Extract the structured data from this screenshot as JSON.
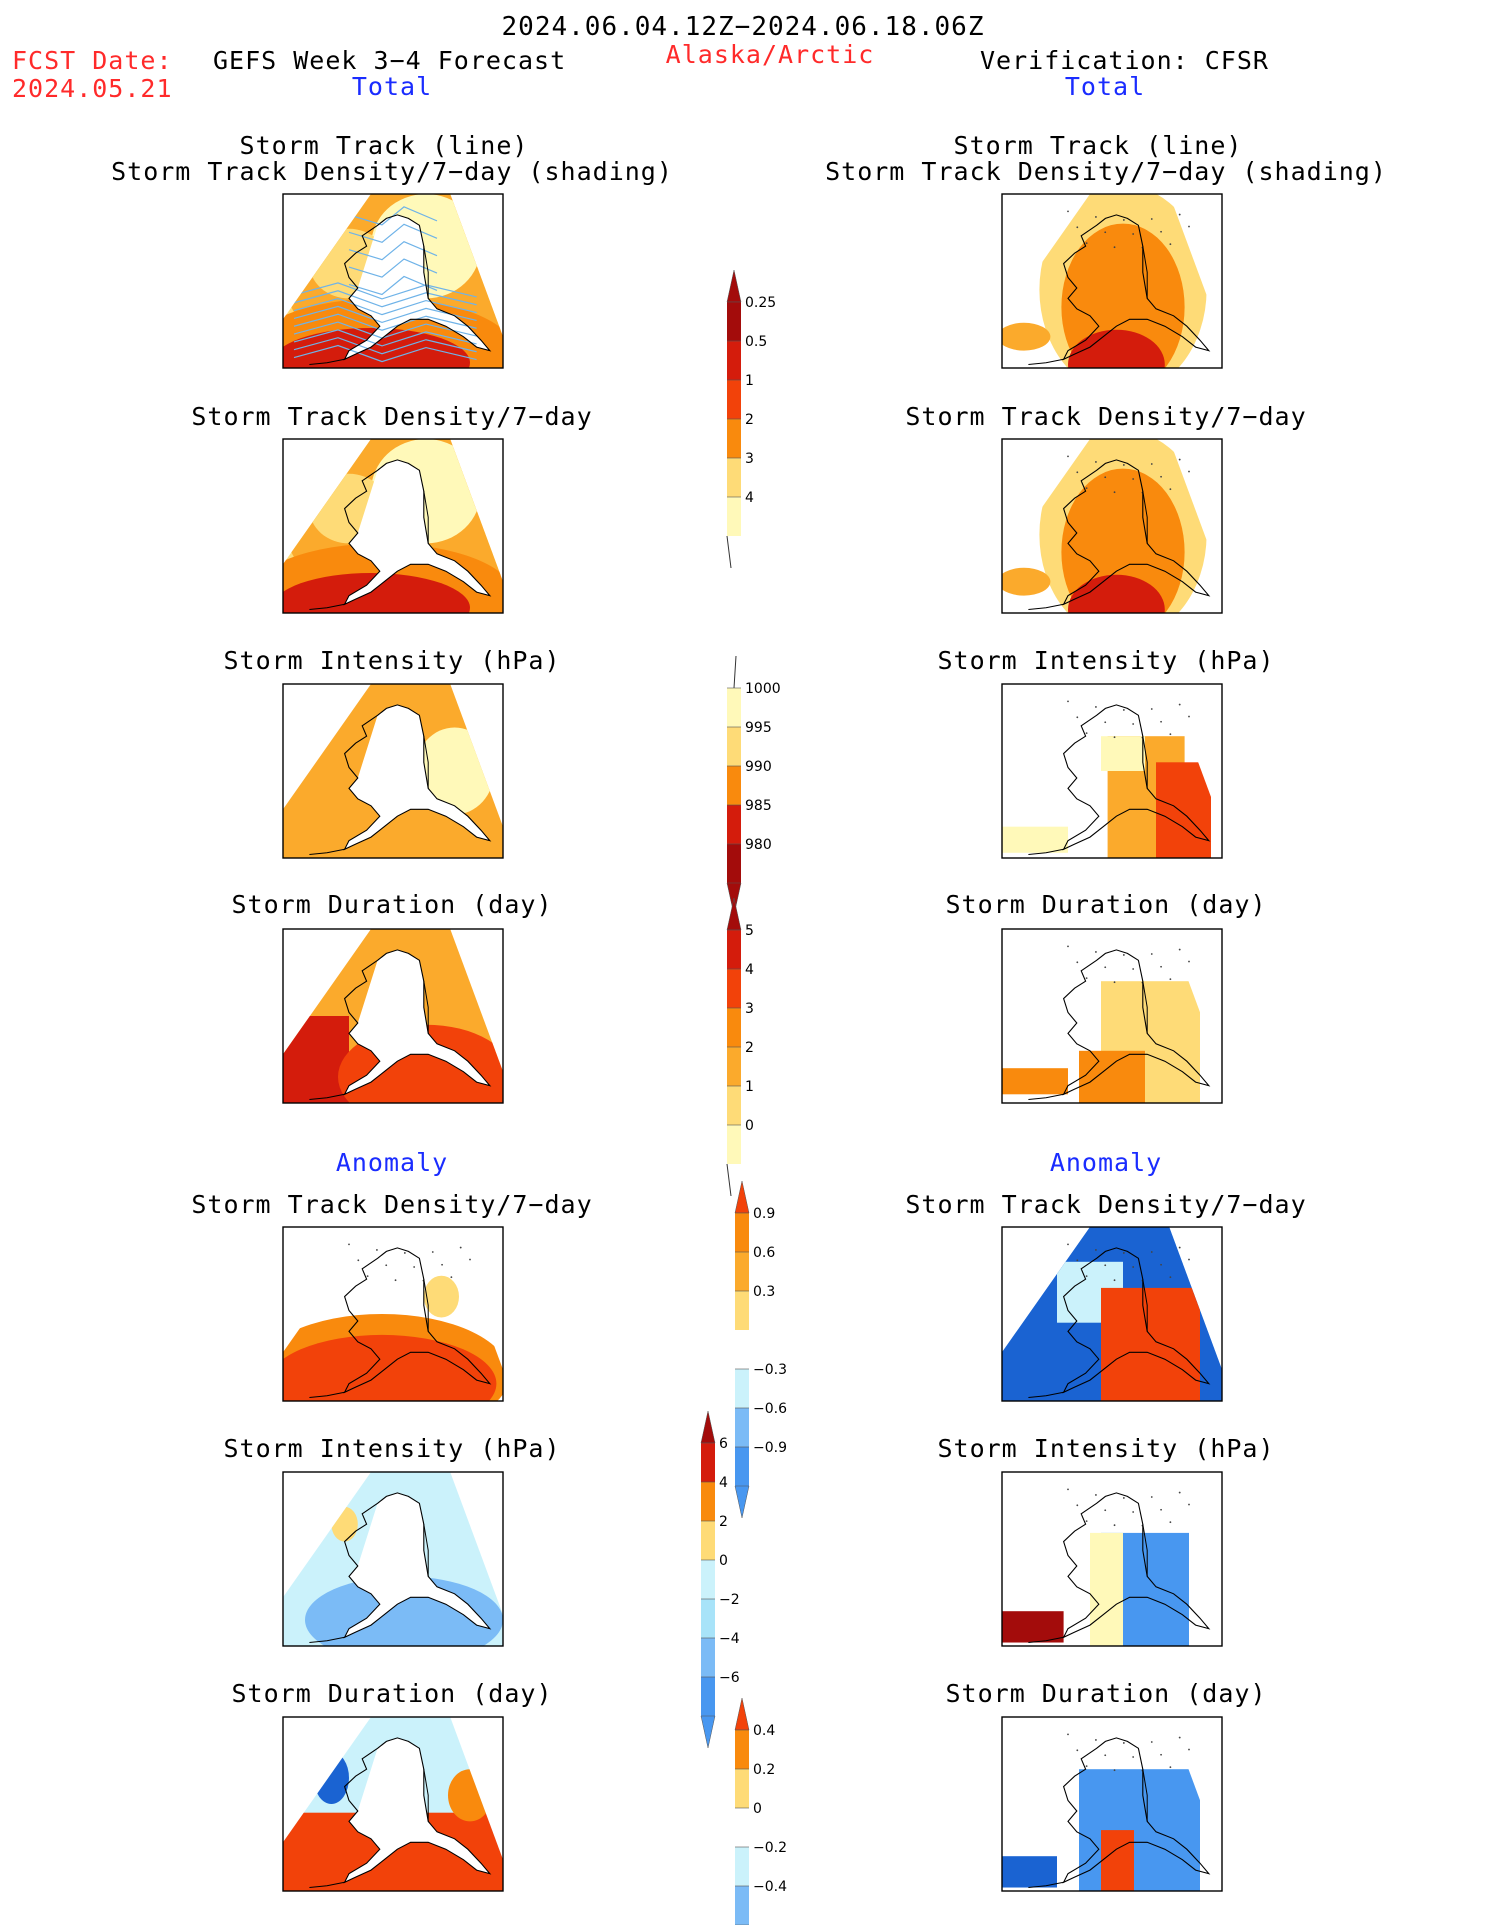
{
  "header": {
    "period": "2024.06.04.12Z−2024.06.18.06Z",
    "fcst_label": "FCST Date:",
    "fcst_date": "2024.05.21",
    "forecast_title": "GEFS Week 3−4 Forecast",
    "region": "Alaska/Arctic",
    "verification": "Verification: CFSR",
    "total_left": "Total",
    "total_right": "Total",
    "anomaly_left": "Anomaly",
    "anomaly_right": "Anomaly"
  },
  "panel_titles": {
    "track_line": "Storm Track (line)",
    "track_shading": "Storm Track Density/7−day (shading)",
    "density": "Storm Track Density/7−day",
    "intensity": "Storm Intensity (hPa)",
    "duration": "Storm Duration (day)"
  },
  "colors": {
    "warm": [
      "#fff9b9",
      "#fedb77",
      "#fbaa2c",
      "#f98a0d",
      "#f2420a",
      "#d41c0c",
      "#a30c0b"
    ],
    "cool": [
      "#cbf2fb",
      "#a8e3f9",
      "#7bbbf6",
      "#4897f0",
      "#1a63d2"
    ],
    "track_line": "#6fb3e8"
  },
  "chart_data": [
    {
      "type": "heatmap",
      "title": "Storm Track Density/7−day",
      "source": "GEFS",
      "colorbar": [
        "0.25",
        "0.5",
        "1",
        "2",
        "3",
        "4"
      ]
    },
    {
      "type": "heatmap",
      "title": "Storm Intensity (hPa)",
      "source": "GEFS",
      "colorbar": [
        "1000",
        "995",
        "990",
        "985",
        "980"
      ]
    },
    {
      "type": "heatmap",
      "title": "Storm Duration (day)",
      "source": "GEFS",
      "colorbar": [
        "5",
        "4",
        "3",
        "2",
        "1",
        "0"
      ]
    },
    {
      "type": "heatmap",
      "title": "Storm Track Density/7−day Anomaly",
      "colorbar": [
        "0.9",
        "0.6",
        "0.3",
        "−0.3",
        "−0.6",
        "−0.9"
      ]
    },
    {
      "type": "heatmap",
      "title": "Storm Intensity (hPa) Anomaly",
      "colorbar": [
        "6",
        "4",
        "2",
        "0",
        "−2",
        "−4",
        "−6"
      ]
    },
    {
      "type": "heatmap",
      "title": "Storm Duration (day) Anomaly",
      "colorbar": [
        "0.4",
        "0.2",
        "0",
        "−0.2",
        "−0.4"
      ]
    }
  ]
}
